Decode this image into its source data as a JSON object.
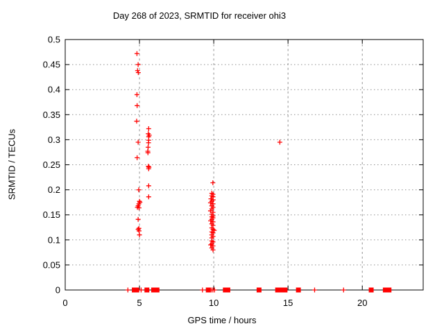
{
  "chart_data": {
    "type": "scatter",
    "title": "Day 268 of 2023, SRMTID for receiver ohi3",
    "xlabel": "GPS time / hours",
    "ylabel": "SRMTID / TECUs",
    "xlim": [
      0,
      24.1
    ],
    "ylim": [
      0,
      0.5
    ],
    "x_ticks": [
      {
        "v": 0,
        "label": "0"
      },
      {
        "v": 5,
        "label": "5"
      },
      {
        "v": 10,
        "label": "10"
      },
      {
        "v": 15,
        "label": "15"
      },
      {
        "v": 20,
        "label": "20"
      }
    ],
    "y_ticks": [
      {
        "v": 0,
        "label": "0"
      },
      {
        "v": 0.05,
        "label": "0.05"
      },
      {
        "v": 0.1,
        "label": "0.1"
      },
      {
        "v": 0.15,
        "label": "0.15"
      },
      {
        "v": 0.2,
        "label": "0.2"
      },
      {
        "v": 0.25,
        "label": "0.25"
      },
      {
        "v": 0.3,
        "label": "0.3"
      },
      {
        "v": 0.35,
        "label": "0.35"
      },
      {
        "v": 0.4,
        "label": "0.4"
      },
      {
        "v": 0.45,
        "label": "0.45"
      },
      {
        "v": 0.5,
        "label": "0.5"
      }
    ],
    "grid": true,
    "legend": "none",
    "marker": "plus",
    "colors": {
      "marker": "#ff0000",
      "grid": "#909090",
      "axis": "#000000",
      "background": "#ffffff"
    },
    "series": [
      {
        "name": "SRMTID",
        "points": [
          [
            4.83,
            0.472
          ],
          [
            4.91,
            0.45
          ],
          [
            4.87,
            0.438
          ],
          [
            4.92,
            0.434
          ],
          [
            4.83,
            0.39
          ],
          [
            4.84,
            0.368
          ],
          [
            4.81,
            0.337
          ],
          [
            4.91,
            0.295
          ],
          [
            4.84,
            0.264
          ],
          [
            4.95,
            0.2
          ],
          [
            5.0,
            0.177
          ],
          [
            5.03,
            0.175
          ],
          [
            4.96,
            0.172
          ],
          [
            4.91,
            0.168
          ],
          [
            4.86,
            0.165
          ],
          [
            4.97,
            0.164
          ],
          [
            4.91,
            0.141
          ],
          [
            4.96,
            0.123
          ],
          [
            4.91,
            0.121
          ],
          [
            4.97,
            0.118
          ],
          [
            5.0,
            0.11
          ],
          [
            5.62,
            0.322
          ],
          [
            5.59,
            0.312
          ],
          [
            5.66,
            0.309
          ],
          [
            5.62,
            0.306
          ],
          [
            5.62,
            0.299
          ],
          [
            5.61,
            0.294
          ],
          [
            5.58,
            0.285
          ],
          [
            5.56,
            0.277
          ],
          [
            5.57,
            0.274
          ],
          [
            5.6,
            0.247
          ],
          [
            5.64,
            0.245
          ],
          [
            5.62,
            0.242
          ],
          [
            5.62,
            0.208
          ],
          [
            5.62,
            0.186
          ],
          [
            9.94,
            0.214
          ],
          [
            9.87,
            0.193
          ],
          [
            9.95,
            0.191
          ],
          [
            9.87,
            0.188
          ],
          [
            9.95,
            0.186
          ],
          [
            9.81,
            0.182
          ],
          [
            9.96,
            0.18
          ],
          [
            9.87,
            0.177
          ],
          [
            9.78,
            0.174
          ],
          [
            9.95,
            0.172
          ],
          [
            9.87,
            0.168
          ],
          [
            9.95,
            0.165
          ],
          [
            9.87,
            0.162
          ],
          [
            9.78,
            0.158
          ],
          [
            9.95,
            0.155
          ],
          [
            9.87,
            0.151
          ],
          [
            9.95,
            0.148
          ],
          [
            9.87,
            0.146
          ],
          [
            9.95,
            0.144
          ],
          [
            9.87,
            0.141
          ],
          [
            9.79,
            0.138
          ],
          [
            9.95,
            0.136
          ],
          [
            9.87,
            0.132
          ],
          [
            9.95,
            0.129
          ],
          [
            9.87,
            0.124
          ],
          [
            9.95,
            0.121
          ],
          [
            10.03,
            0.119
          ],
          [
            9.87,
            0.116
          ],
          [
            9.95,
            0.114
          ],
          [
            9.87,
            0.11
          ],
          [
            9.95,
            0.107
          ],
          [
            9.87,
            0.104
          ],
          [
            9.87,
            0.098
          ],
          [
            9.95,
            0.096
          ],
          [
            9.87,
            0.092
          ],
          [
            9.79,
            0.09
          ],
          [
            9.95,
            0.088
          ],
          [
            9.87,
            0.084
          ],
          [
            9.95,
            0.08
          ],
          [
            14.45,
            0.295
          ]
        ],
        "zero_value_marks": {
          "plus_x": [
            4.22,
            5.11,
            9.24,
            9.83,
            9.94,
            10.05,
            16.79,
            18.74
          ],
          "square_x": [
            4.65,
            4.82,
            5.5,
            5.95,
            6.18,
            9.63,
            10.78,
            10.95,
            13.05,
            14.3,
            14.55,
            14.8,
            15.7,
            20.6,
            21.55,
            21.8
          ]
        }
      }
    ]
  }
}
